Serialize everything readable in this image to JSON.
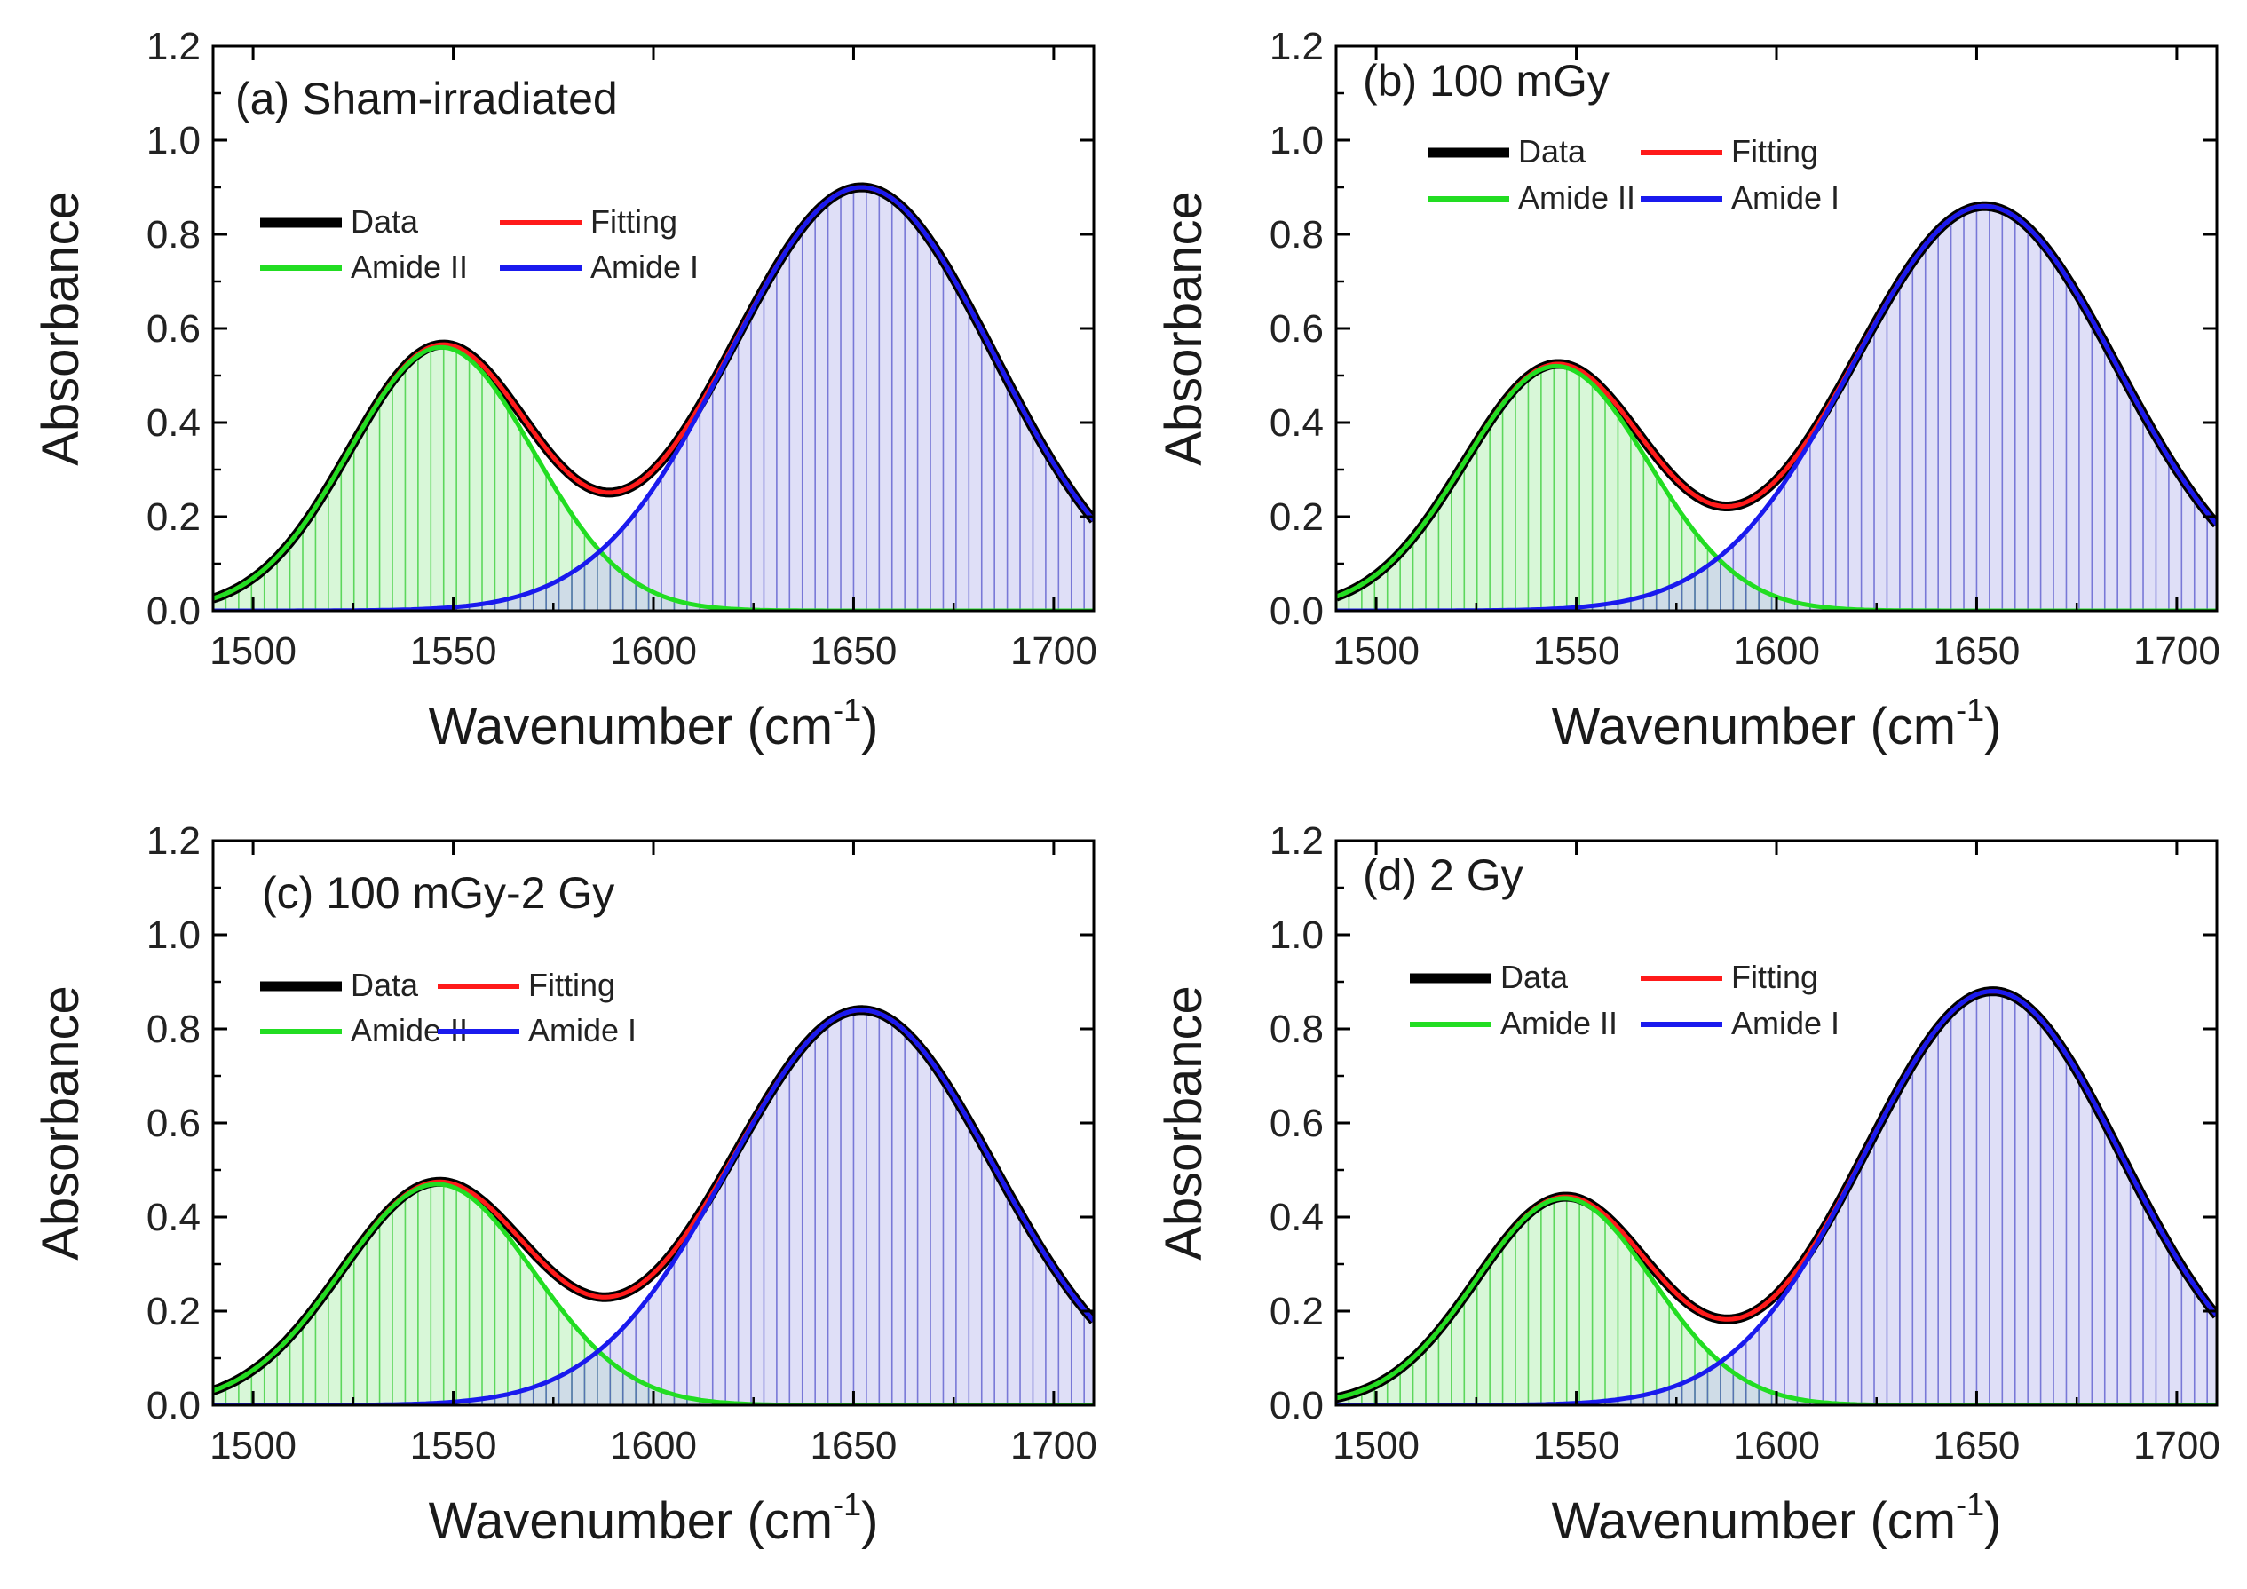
{
  "colors": {
    "data": "#000000",
    "fitting": "#ff1a1a",
    "amide_ii": "#22dd22",
    "amide_i": "#1a1aee",
    "amide_ii_fill": "#b8f0b8",
    "amide_i_fill": "#c9c9f2",
    "amide_ii_hatch": "#33cc33",
    "amide_i_hatch": "#5555cc",
    "axis": "#000000"
  },
  "chart_data": [
    {
      "type": "line",
      "panel_label": "(a) Sham-irradiated",
      "xlabel": "Wavenumber (cm",
      "xlabel_sup": "-1",
      "xlabel_close": ")",
      "ylabel": "Absorbance",
      "xlim": [
        1490,
        1710
      ],
      "ylim": [
        0.0,
        1.2
      ],
      "xticks": [
        "1500",
        "1550",
        "1600",
        "1650",
        "1700"
      ],
      "yticks": [
        "0.0",
        "0.2",
        "0.4",
        "0.6",
        "0.8",
        "1.0",
        "1.2"
      ],
      "legend": {
        "data": "Data",
        "fitting": "Fitting",
        "amide_ii": "Amide II",
        "amide_i": "Amide I"
      },
      "series": [
        {
          "name": "Amide II",
          "kind": "gaussian",
          "center": 1547,
          "amplitude": 0.56,
          "sigma": 23
        },
        {
          "name": "Amide I",
          "kind": "gaussian",
          "center": 1652,
          "amplitude": 0.9,
          "sigma": 33
        }
      ]
    },
    {
      "type": "line",
      "panel_label": "(b) 100 mGy",
      "xlabel": "Wavenumber (cm",
      "xlabel_sup": "-1",
      "xlabel_close": ")",
      "ylabel": "Absorbance",
      "xlim": [
        1490,
        1710
      ],
      "ylim": [
        0.0,
        1.2
      ],
      "xticks": [
        "1500",
        "1550",
        "1600",
        "1650",
        "1700"
      ],
      "yticks": [
        "0.0",
        "0.2",
        "0.4",
        "0.6",
        "0.8",
        "1.0",
        "1.2"
      ],
      "legend": {
        "data": "Data",
        "fitting": "Fitting",
        "amide_ii": "Amide II",
        "amide_i": "Amide I"
      },
      "series": [
        {
          "name": "Amide II",
          "kind": "gaussian",
          "center": 1545,
          "amplitude": 0.52,
          "sigma": 23
        },
        {
          "name": "Amide I",
          "kind": "gaussian",
          "center": 1652,
          "amplitude": 0.86,
          "sigma": 33
        }
      ]
    },
    {
      "type": "line",
      "panel_label": "(c) 100 mGy-2 Gy",
      "xlabel": "Wavenumber (cm",
      "xlabel_sup": "-1",
      "xlabel_close": ")",
      "ylabel": "Absorbance",
      "xlim": [
        1490,
        1710
      ],
      "ylim": [
        0.0,
        1.2
      ],
      "xticks": [
        "1500",
        "1550",
        "1600",
        "1650",
        "1700"
      ],
      "yticks": [
        "0.0",
        "0.2",
        "0.4",
        "0.6",
        "0.8",
        "1.0",
        "1.2"
      ],
      "legend": {
        "data": "Data",
        "fitting": "Fitting",
        "amide_ii": "Amide II",
        "amide_i": "Amide I"
      },
      "series": [
        {
          "name": "Amide II",
          "kind": "gaussian",
          "center": 1546,
          "amplitude": 0.47,
          "sigma": 24
        },
        {
          "name": "Amide I",
          "kind": "gaussian",
          "center": 1652,
          "amplitude": 0.84,
          "sigma": 33
        }
      ]
    },
    {
      "type": "line",
      "panel_label": "(d) 2 Gy",
      "xlabel": "Wavenumber (cm",
      "xlabel_sup": "-1",
      "xlabel_close": ")",
      "ylabel": "Absorbance",
      "xlim": [
        1490,
        1710
      ],
      "ylim": [
        0.0,
        1.2
      ],
      "xticks": [
        "1500",
        "1550",
        "1600",
        "1650",
        "1700"
      ],
      "yticks": [
        "0.0",
        "0.2",
        "0.4",
        "0.6",
        "0.8",
        "1.0",
        "1.2"
      ],
      "legend": {
        "data": "Data",
        "fitting": "Fitting",
        "amide_ii": "Amide II",
        "amide_i": "Amide I"
      },
      "series": [
        {
          "name": "Amide II",
          "kind": "gaussian",
          "center": 1547,
          "amplitude": 0.44,
          "sigma": 22
        },
        {
          "name": "Amide I",
          "kind": "gaussian",
          "center": 1654,
          "amplitude": 0.88,
          "sigma": 32
        }
      ]
    }
  ]
}
